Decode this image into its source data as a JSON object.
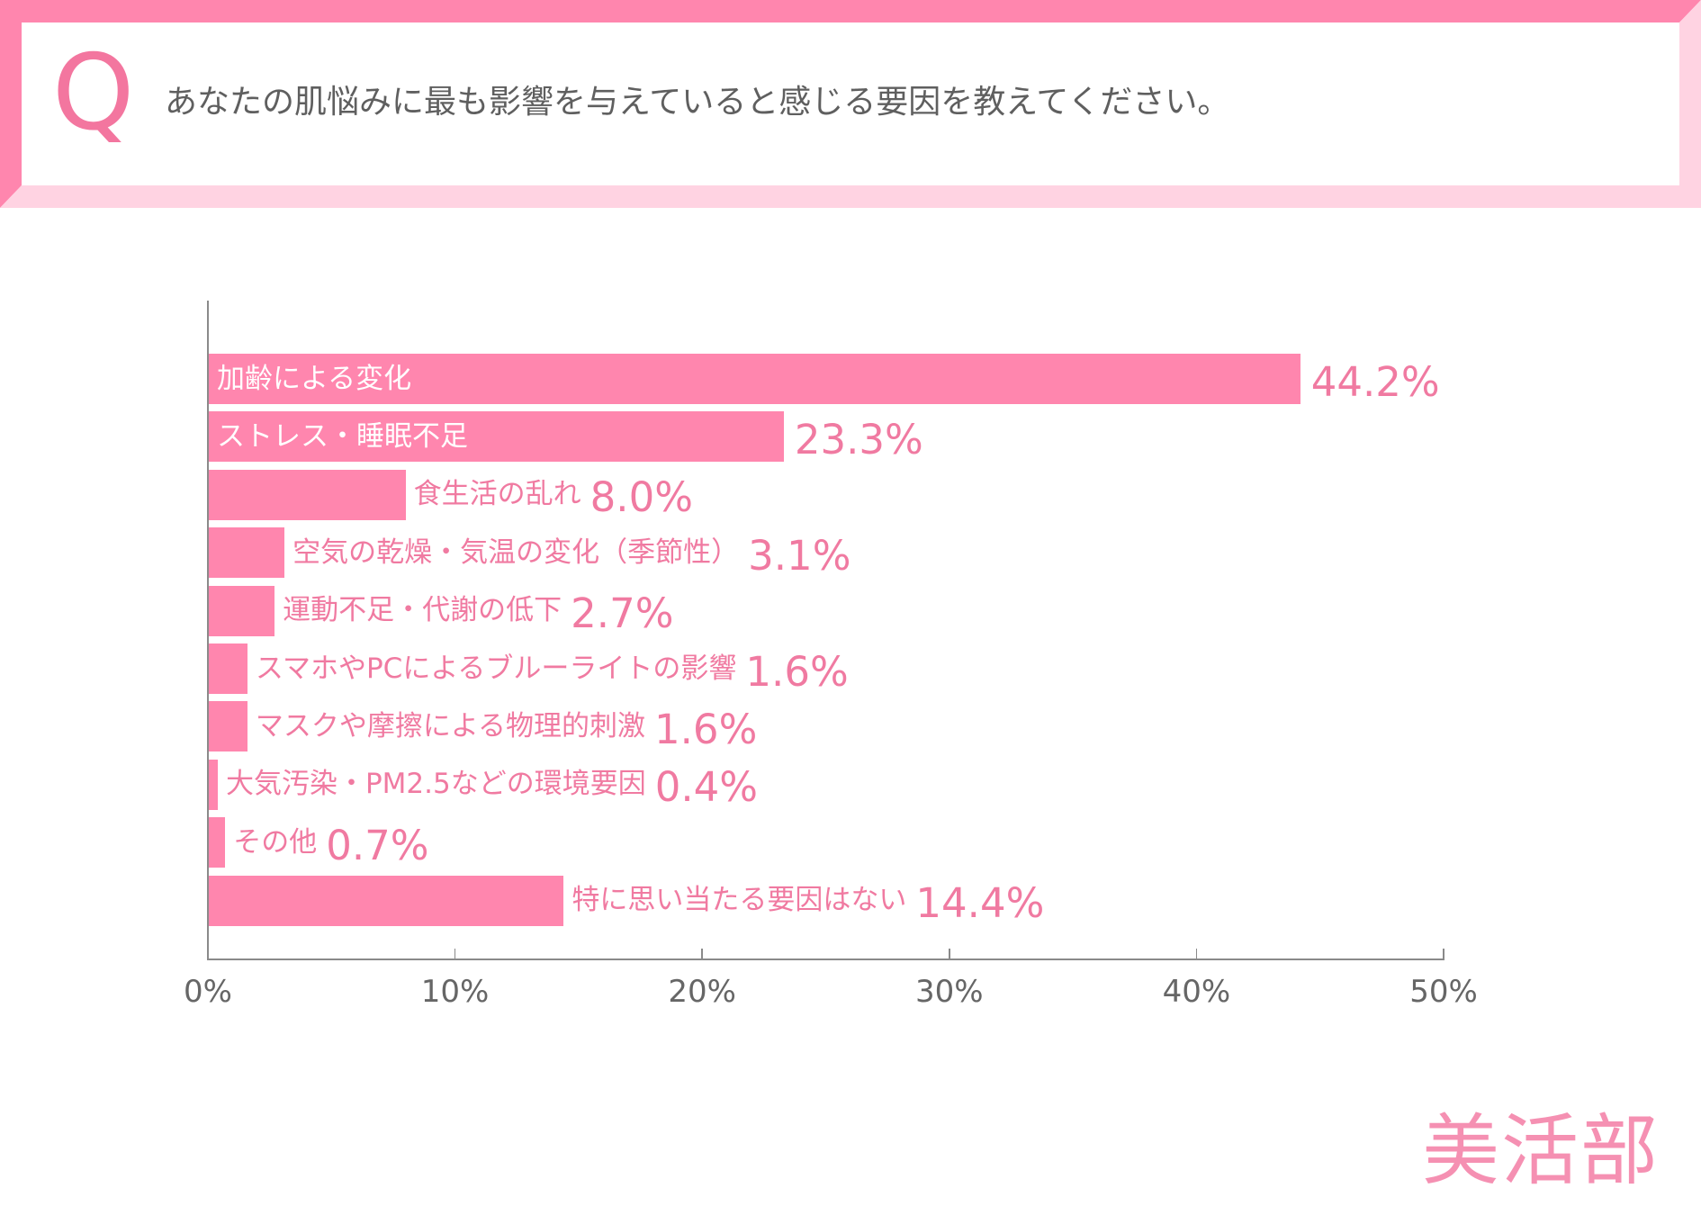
{
  "header": {
    "q_mark": "Q"
  },
  "chart_data": {
    "type": "bar",
    "orientation": "horizontal",
    "title": "あなたの肌悩みに最も影響を与えていると感じる要因を教えてください。",
    "categories": [
      "加齢による変化",
      "ストレス・睡眠不足",
      "食生活の乱れ",
      "空気の乾燥・気温の変化（季節性）",
      "運動不足・代謝の低下",
      "スマホやPCによるブルーライトの影響",
      "マスクや摩擦による物理的刺激",
      "大気汚染・PM2.5などの環境要因",
      "その他",
      "特に思い当たる要因はない"
    ],
    "values": [
      44.2,
      23.3,
      8.0,
      3.1,
      2.7,
      1.6,
      1.6,
      0.4,
      0.7,
      14.4
    ],
    "data_labels": [
      "44.2%",
      "23.3%",
      "8.0%",
      "3.1%",
      "2.7%",
      "1.6%",
      "1.6%",
      "0.4%",
      "0.7%",
      "14.4%"
    ],
    "xlim": [
      0,
      50
    ],
    "xticks": [
      0,
      10,
      20,
      30,
      40,
      50
    ],
    "xtick_labels": [
      "0%",
      "10%",
      "20%",
      "30%",
      "40%",
      "50%"
    ],
    "grid": false,
    "bar_color": "#ff86ae"
  },
  "brand": {
    "logo_text": "美活部"
  },
  "colors": {
    "frame_dark": "#ff86ae",
    "frame_light": "#ffd3e2",
    "accent_text": "#f07aa1",
    "question_text": "#5f5f5f"
  }
}
